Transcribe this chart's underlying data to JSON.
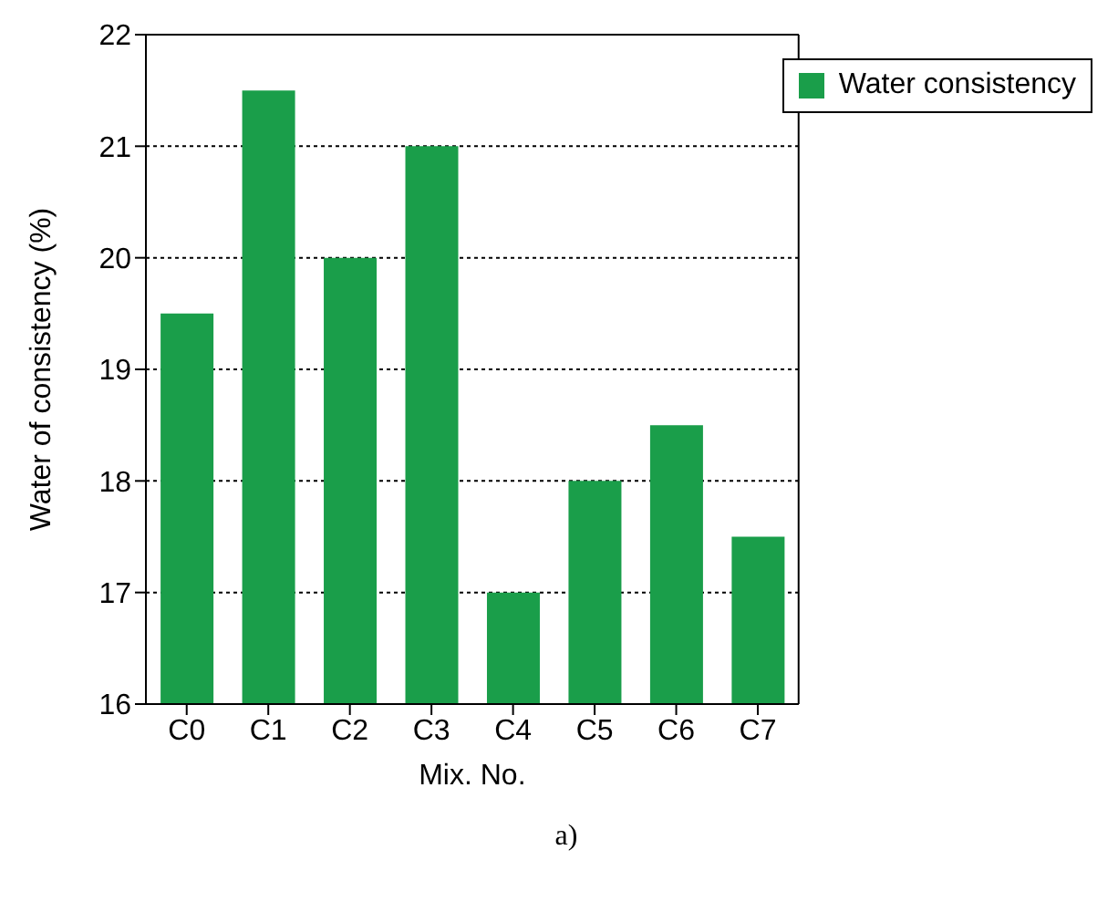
{
  "chart_data": {
    "type": "bar",
    "xlabel": "Mix. No.",
    "ylabel": "Water of consistency  (%)",
    "categories": [
      "C0",
      "C1",
      "C2",
      "C3",
      "C4",
      "C5",
      "C6",
      "C7"
    ],
    "series": [
      {
        "name": "Water consistency",
        "color": "#1a9e4a",
        "values": [
          19.5,
          21.5,
          20,
          21,
          17,
          18,
          18.5,
          17.5
        ]
      }
    ],
    "ylim": [
      16,
      22
    ],
    "yticks": [
      16,
      17,
      18,
      19,
      20,
      21,
      22
    ],
    "grid": "y",
    "legend": "top right",
    "annotations": [
      "a)"
    ]
  }
}
